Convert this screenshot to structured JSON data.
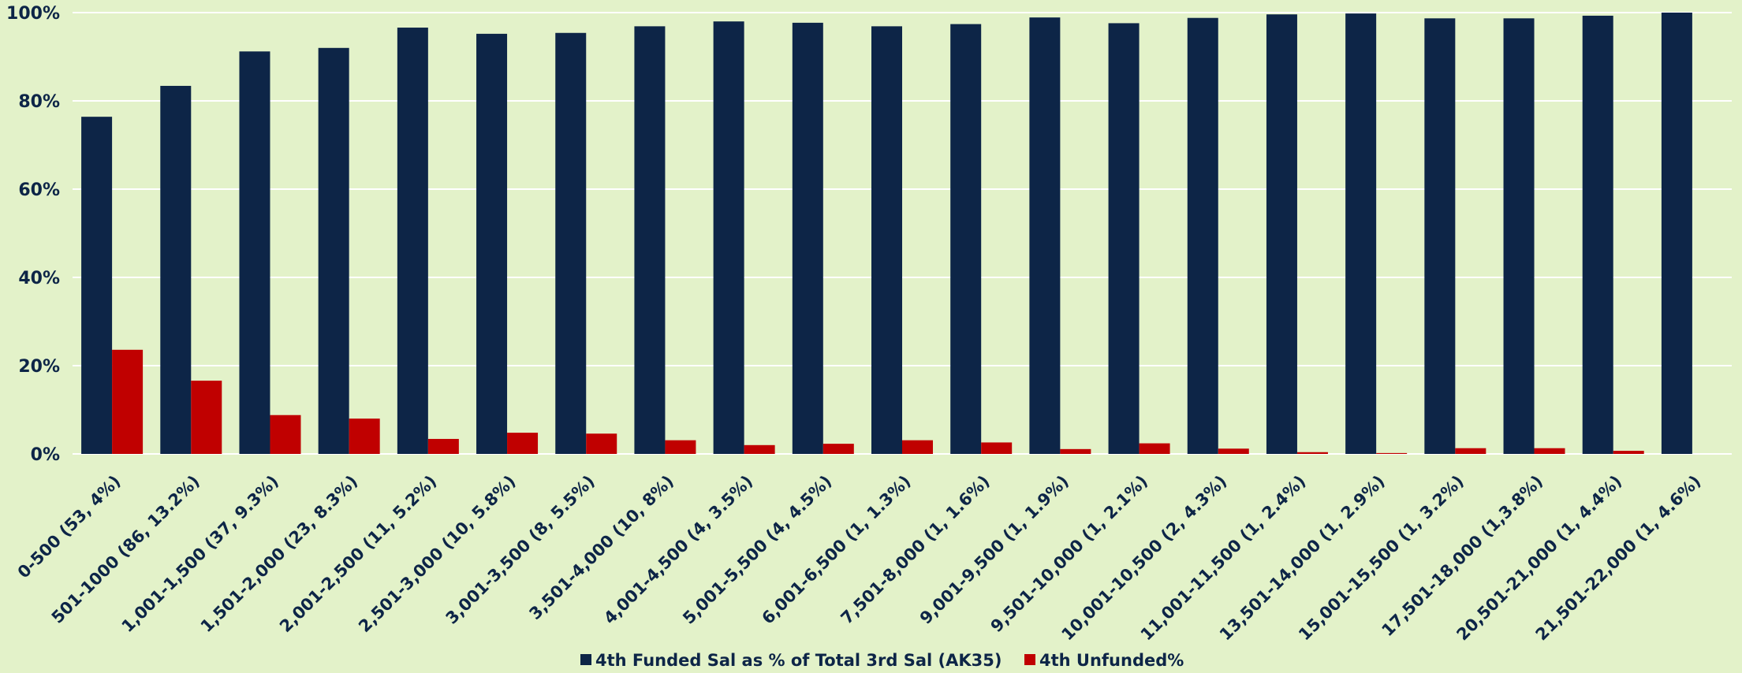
{
  "chart_data": {
    "type": "bar",
    "title": "",
    "xlabel": "",
    "ylabel": "",
    "ylim": [
      0,
      100
    ],
    "yticks": [
      "0%",
      "20%",
      "40%",
      "60%",
      "80%",
      "100%"
    ],
    "grid": true,
    "legend_position": "bottom",
    "categories": [
      "0-500 (53, 4%)",
      "501-1000 (86, 13.2%)",
      "1,001-1,500 (37, 9.3%)",
      "1,501-2,000 (23, 8.3%)",
      "2,001-2,500 (11, 5.2%)",
      "2,501-3,000 (10, 5.8%)",
      "3,001-3,500 (8, 5.5%)",
      "3,501-4,000 (10, 8%)",
      "4,001-4,500 (4, 3.5%)",
      "5,001-5,500 (4, 4.5%)",
      "6,001-6,500 (1, 1.3%)",
      "7,501-8,000 (1, 1.6%)",
      "9,001-9,500 (1, 1.9%)",
      "9,501-10,000 (1, 2.1%)",
      "10,001-10,500 (2, 4.3%)",
      "11,001-11,500 (1, 2.4%)",
      "13,501-14,000 (1, 2.9%)",
      "15,001-15,500 (1, 3.2%)",
      "17,501-18,000 (1,3.8%)",
      "20,501-21,000 (1, 4.4%)",
      "21,501-22,000 (1, 4.6%)"
    ],
    "series": [
      {
        "name": "4th Funded Sal as % of Total 3rd Sal (AK35)",
        "color": "#0d2547",
        "values": [
          76.4,
          83.4,
          91.2,
          92.0,
          96.6,
          95.2,
          95.4,
          96.9,
          98.0,
          97.7,
          96.9,
          97.4,
          98.9,
          97.6,
          98.8,
          99.6,
          99.8,
          98.7,
          98.7,
          99.3,
          100.0
        ]
      },
      {
        "name": "4th Unfunded%",
        "color": "#c00000",
        "values": [
          23.6,
          16.6,
          8.8,
          8.0,
          3.4,
          4.8,
          4.6,
          3.1,
          2.0,
          2.3,
          3.1,
          2.6,
          1.1,
          2.4,
          1.2,
          0.4,
          0.2,
          1.3,
          1.3,
          0.7,
          0.0
        ]
      }
    ]
  }
}
